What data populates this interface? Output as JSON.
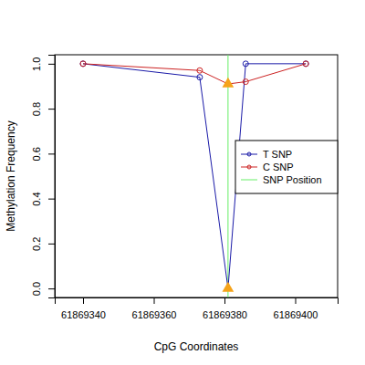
{
  "chart_data": {
    "type": "line",
    "x_label": "CpG Coordinates",
    "y_label": "Methylation Frequency",
    "x": [
      61869340,
      61869373,
      61869381,
      61869386,
      61869403
    ],
    "series": [
      {
        "name": "T SNP",
        "color": "#1a1aa8",
        "marker": "circle",
        "values": [
          1.0,
          0.94,
          0.0,
          1.0,
          1.0
        ]
      },
      {
        "name": "C SNP",
        "color": "#cc2222",
        "marker": "circle",
        "values": [
          1.0,
          0.97,
          0.91,
          0.92,
          1.0
        ]
      }
    ],
    "snp_position": {
      "name": "SNP Position",
      "value": 61869381,
      "color": "#66ee66"
    },
    "xlim": [
      61869332,
      61869412
    ],
    "xticks": [
      61869340,
      61869360,
      61869380,
      61869400
    ],
    "ylim": [
      -0.04,
      1.04
    ],
    "yticks": [
      {
        "value": 0,
        "label": "0.0"
      },
      0.2,
      0.4,
      0.6,
      0.8,
      {
        "value": 1,
        "label": "1.0"
      }
    ],
    "legend": "right",
    "grid": false
  }
}
